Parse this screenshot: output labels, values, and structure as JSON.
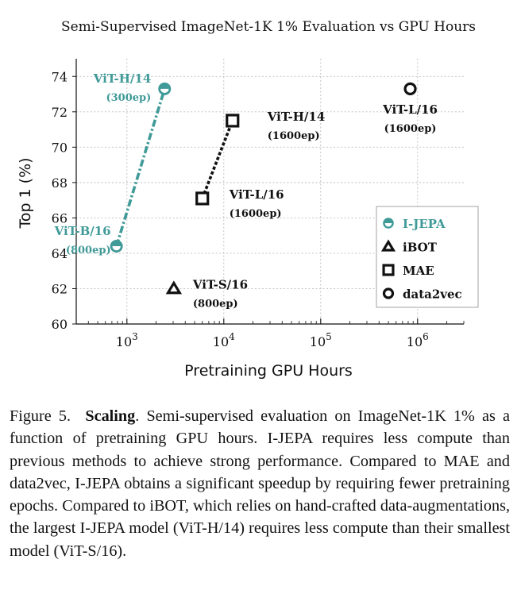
{
  "chart_data": {
    "type": "scatter",
    "title": "Semi-Supervised ImageNet-1K 1% Evaluation vs GPU Hours",
    "xlabel": "Pretraining GPU Hours",
    "ylabel": "Top 1 (%)",
    "xscale": "log",
    "xlim": [
      300,
      3000000
    ],
    "ylim": [
      60,
      75
    ],
    "x_ticks": [
      {
        "value": 1000,
        "base": "10",
        "exp": "3"
      },
      {
        "value": 10000,
        "base": "10",
        "exp": "4"
      },
      {
        "value": 100000,
        "base": "10",
        "exp": "5"
      },
      {
        "value": 1000000,
        "base": "10",
        "exp": "6"
      }
    ],
    "y_ticks": [
      60,
      62,
      64,
      66,
      68,
      70,
      72,
      74
    ],
    "grid": true,
    "legend_position": "right",
    "series": [
      {
        "name": "I-JEPA",
        "marker": "half-circle",
        "color": "#3f9a98",
        "line": "dashdot",
        "points": [
          {
            "x": 780,
            "y": 64.4,
            "label": "ViT-B/16",
            "sublabel": "(800ep)"
          },
          {
            "x": 2450,
            "y": 73.3,
            "label": "ViT-H/14",
            "sublabel": "(300ep)"
          }
        ]
      },
      {
        "name": "iBOT",
        "marker": "triangle",
        "color": "#111111",
        "line": "none",
        "points": [
          {
            "x": 3050,
            "y": 62.0,
            "label": "ViT-S/16",
            "sublabel": "(800ep)"
          }
        ]
      },
      {
        "name": "MAE",
        "marker": "square",
        "color": "#111111",
        "line": "dotted",
        "points": [
          {
            "x": 6000,
            "y": 67.1,
            "label": "ViT-L/16",
            "sublabel": "(1600ep)"
          },
          {
            "x": 12300,
            "y": 71.5,
            "label": "ViT-H/14",
            "sublabel": "(1600ep)"
          }
        ]
      },
      {
        "name": "data2vec",
        "marker": "circle",
        "color": "#111111",
        "line": "none",
        "points": [
          {
            "x": 840000,
            "y": 73.3,
            "label": "ViT-L/16",
            "sublabel": "(1600ep)"
          }
        ]
      }
    ]
  },
  "caption": {
    "figure_label": "Figure 5.",
    "bold_title": "Scaling",
    "text": ". Semi-supervised evaluation on ImageNet-1K 1% as a function of pretraining GPU hours. I-JEPA requires less compute than previous methods to achieve strong performance. Compared to MAE and data2vec, I-JEPA obtains a significant speedup by requiring fewer pretraining epochs. Compared to iBOT, which relies on hand-crafted data-augmentations, the largest I-JEPA model (ViT-H/14) requires less compute than their smallest model (ViT-S/16)."
  }
}
